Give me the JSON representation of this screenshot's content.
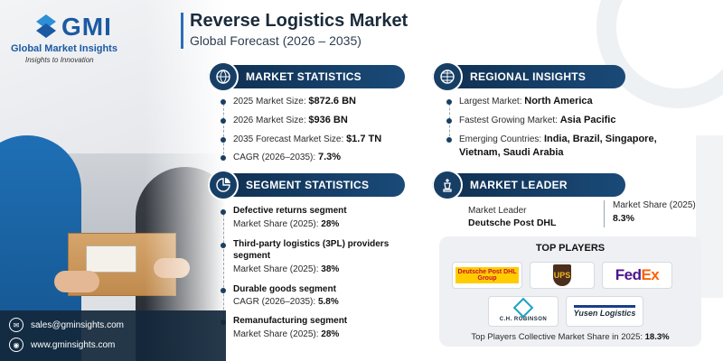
{
  "brand": {
    "logo_text": "GMI",
    "name": "Global Market Insights",
    "tagline": "Insights to Innovation"
  },
  "header": {
    "title": "Reverse Logistics Market",
    "subtitle": "Global Forecast (2026 – 2035)"
  },
  "market_statistics": {
    "heading": "MARKET STATISTICS",
    "icon": "globe-money-icon",
    "items": [
      {
        "label": "2025 Market Size: ",
        "value": "$872.6 BN"
      },
      {
        "label": "2026 Market Size: ",
        "value": "$936 BN"
      },
      {
        "label": "2035 Forecast Market Size: ",
        "value": "$1.7 TN"
      },
      {
        "label": "CAGR (2026–2035): ",
        "value": "7.3%"
      }
    ]
  },
  "regional_insights": {
    "heading": "REGIONAL INSIGHTS",
    "icon": "globe-icon",
    "items": [
      {
        "label": "Largest Market: ",
        "value": "North America"
      },
      {
        "label": "Fastest Growing Market: ",
        "value": "Asia Pacific"
      },
      {
        "label": "Emerging Countries: ",
        "value": "India, Brazil, Singapore,",
        "value2": "Vietnam, Saudi Arabia"
      }
    ]
  },
  "segment_statistics": {
    "heading": "SEGMENT STATISTICS",
    "icon": "segment-chart-icon",
    "items": [
      {
        "title": "Defective returns segment",
        "title2": "",
        "label": "Market Share (2025): ",
        "value": "28%"
      },
      {
        "title": "Third-party logistics (3PL) providers",
        "title2": "segment",
        "label": "Market Share (2025): ",
        "value": "38%"
      },
      {
        "title": "Durable goods segment",
        "title2": "",
        "label": "CAGR (2026–2035): ",
        "value": "5.8%"
      },
      {
        "title": "Remanufacturing segment",
        "title2": "",
        "label": "Market Share (2025): ",
        "value": "28%"
      }
    ]
  },
  "market_leader": {
    "heading": "MARKET LEADER",
    "icon": "chess-king-icon",
    "leader_label": "Market Leader",
    "leader_name": "Deutsche Post DHL",
    "share_label": "Market Share (2025)",
    "share_value": "8.3%"
  },
  "top_players": {
    "heading": "TOP PLAYERS",
    "logos": [
      {
        "name": "Deutsche Post DHL",
        "line1": "Deutsche Post DHL",
        "line2": "Group"
      },
      {
        "name": "UPS",
        "text": "UPS"
      },
      {
        "name": "FedEx",
        "fe": "Fed",
        "ex": "Ex"
      },
      {
        "name": "C.H. Robinson",
        "text": "C.H. ROBINSON"
      },
      {
        "name": "Yusen Logistics",
        "text": "Yusen Logistics"
      }
    ],
    "footer_label": "Top Players Collective Market Share in 2025: ",
    "footer_value": "18.3%"
  },
  "contact": {
    "email": "sales@gminsights.com",
    "website": "www.gminsights.com"
  },
  "colors": {
    "accent": "#1b5aa3",
    "header_bg": "#0f2e4f"
  }
}
